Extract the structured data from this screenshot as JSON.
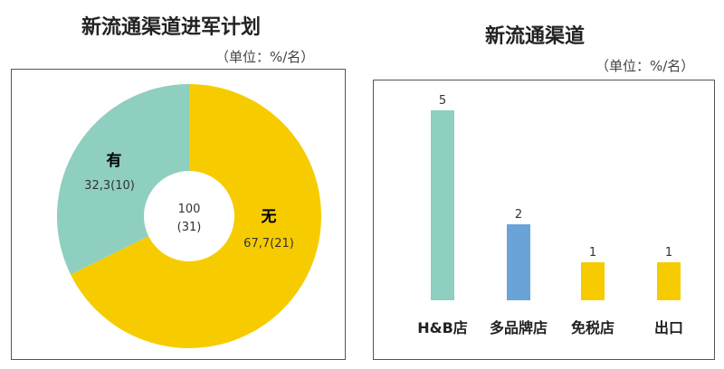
{
  "chart_data": [
    {
      "type": "pie",
      "title": "新流通渠道进军计划",
      "unit_note": "（单位：%/名）",
      "center_label": {
        "total": "100",
        "count": "(31)"
      },
      "slices": [
        {
          "name": "有",
          "value": 32.3,
          "label": "32,3(10)",
          "color": "#8ecfbf"
        },
        {
          "name": "无",
          "value": 67.7,
          "label": "67,7(21)",
          "color": "#f6cc00"
        }
      ]
    },
    {
      "type": "bar",
      "title": "新流通渠道",
      "unit_note": "（单位：%/名）",
      "categories": [
        "H&B店",
        "多品牌店",
        "免税店",
        "出口"
      ],
      "values": [
        5,
        2,
        1,
        1
      ],
      "value_labels": [
        "5",
        "2",
        "1",
        "1"
      ],
      "colors": [
        "#8ecfbf",
        "#6aa3d8",
        "#f6cc00",
        "#f6cc00"
      ],
      "ylim": [
        0,
        5
      ],
      "grid": false
    }
  ]
}
